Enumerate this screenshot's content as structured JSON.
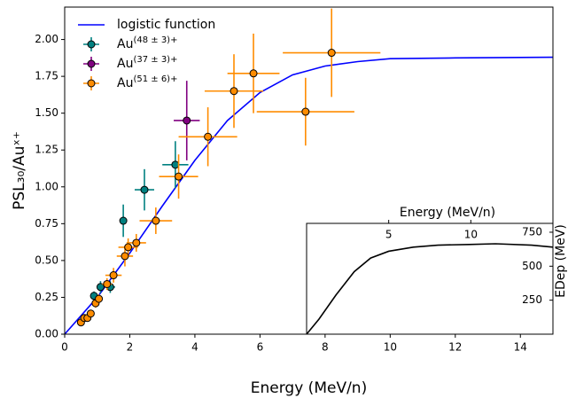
{
  "chart_data": [
    {
      "type": "errorbar",
      "xlabel": "Energy (MeV/n)",
      "ylabel": "PSL₃₀/Auˣ⁺",
      "xlim": [
        0,
        15
      ],
      "ylim": [
        0,
        2.22
      ],
      "xticks": [
        0,
        2,
        4,
        6,
        8,
        10,
        12,
        14
      ],
      "yticks": [
        {
          "value": 0,
          "label": "0.00"
        },
        {
          "value": 0.25,
          "label": "0.25"
        },
        {
          "value": 0.5,
          "label": "0.50"
        },
        {
          "value": 0.75,
          "label": "0.75"
        },
        {
          "value": 1,
          "label": "1.00"
        },
        {
          "value": 1.25,
          "label": "1.25"
        },
        {
          "value": 1.5,
          "label": "1.50"
        },
        {
          "value": 1.75,
          "label": "1.75"
        },
        {
          "value": 2,
          "label": "2.00"
        }
      ],
      "legend": "upper left",
      "fit": {
        "name": "logistic function",
        "color": "#0000ff",
        "x": [
          0,
          1,
          2,
          3,
          4,
          5,
          6,
          7,
          8,
          9,
          10,
          12,
          15
        ],
        "values": [
          0,
          0.25,
          0.55,
          0.87,
          1.18,
          1.45,
          1.64,
          1.76,
          1.82,
          1.85,
          1.87,
          1.875,
          1.88
        ]
      },
      "series": [
        {
          "name": "Au(48 ± 3)+",
          "color": "#008080",
          "x": [
            0.9,
            1.1,
            1.4,
            1.8,
            2.45,
            3.4
          ],
          "values": [
            0.26,
            0.32,
            0.32,
            0.77,
            0.98,
            1.15
          ],
          "xerr": [
            0.1,
            0.1,
            0.15,
            0.1,
            0.3,
            0.4
          ],
          "yerr": [
            0.03,
            0.04,
            0.04,
            0.11,
            0.14,
            0.16
          ]
        },
        {
          "name": "Au(37 ± 3)+",
          "color": "#800080",
          "x": [
            3.75
          ],
          "values": [
            1.45
          ],
          "xerr": [
            0.4
          ],
          "yerr": [
            0.27
          ]
        },
        {
          "name": "Au(51 ± 6)+",
          "color": "#ff8c00",
          "x": [
            0.5,
            0.6,
            0.7,
            0.8,
            0.95,
            1.05,
            1.3,
            1.5,
            1.85,
            1.95,
            2.2,
            2.8,
            3.5,
            4.4,
            5.2,
            5.8,
            7.4,
            8.2
          ],
          "values": [
            0.08,
            0.11,
            0.11,
            0.14,
            0.21,
            0.24,
            0.34,
            0.4,
            0.53,
            0.59,
            0.62,
            0.77,
            1.07,
            1.34,
            1.65,
            1.77,
            1.51,
            1.91
          ],
          "xerr": [
            0.05,
            0.05,
            0.05,
            0.05,
            0.08,
            0.08,
            0.15,
            0.25,
            0.25,
            0.3,
            0.3,
            0.5,
            0.6,
            0.9,
            0.9,
            0.8,
            1.5,
            1.5
          ],
          "yerr": [
            0.02,
            0.02,
            0.02,
            0.02,
            0.03,
            0.03,
            0.04,
            0.05,
            0.07,
            0.06,
            0.06,
            0.09,
            0.15,
            0.2,
            0.25,
            0.27,
            0.23,
            0.3
          ]
        }
      ]
    },
    {
      "type": "line",
      "xlabel": "Energy (MeV/n)",
      "ylabel": "EDep (MeV)",
      "xlim": [
        0,
        15
      ],
      "ylim": [
        0,
        815
      ],
      "xticks": [
        5,
        10
      ],
      "yticks": [
        250,
        500,
        750
      ],
      "series": [
        {
          "color": "#000000",
          "x": [
            0,
            0.75,
            1.8,
            2.9,
            3.9,
            5,
            6.5,
            8,
            9.9,
            11.5,
            13.7,
            15
          ],
          "values": [
            0,
            110,
            290,
            460,
            560,
            610,
            640,
            655,
            660,
            665,
            655,
            640
          ]
        }
      ]
    }
  ]
}
